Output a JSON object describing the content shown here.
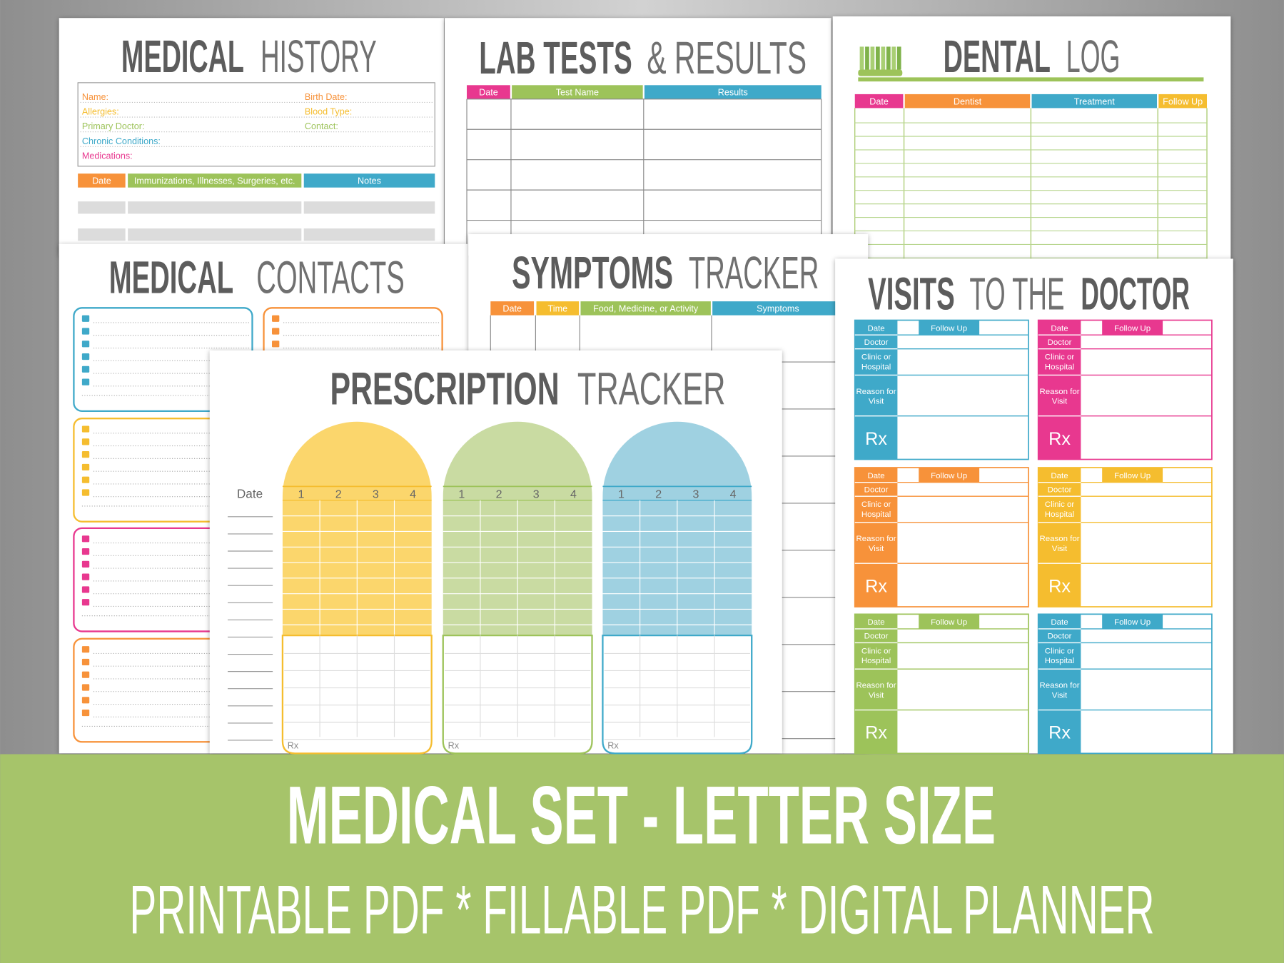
{
  "pages": {
    "medical_history": {
      "title_bold": "MEDICAL",
      "title_light": "HISTORY",
      "fields": [
        "Name:",
        "Birth Date:",
        "Allergies:",
        "Blood Type:",
        "Primary Doctor:",
        "Contact:",
        "Chronic Conditions:",
        "Medications:"
      ],
      "columns": [
        "Date",
        "Immunizations, Illnesses, Surgeries, etc.",
        "Notes"
      ]
    },
    "lab_tests": {
      "title_bold": "LAB TESTS",
      "title_light": "& RESULTS",
      "columns": [
        "Date",
        "Test Name",
        "Results"
      ]
    },
    "dental_log": {
      "title_bold": "DENTAL",
      "title_light": "LOG",
      "columns": [
        "Date",
        "Dentist",
        "Treatment",
        "Follow Up"
      ]
    },
    "medical_contacts": {
      "title_bold": "MEDICAL",
      "title_light": "CONTACTS"
    },
    "symptoms_tracker": {
      "title_bold": "SYMPTOMS",
      "title_light": "TRACKER",
      "columns": [
        "Date",
        "Time",
        "Food, Medicine, or Activity",
        "Symptoms"
      ]
    },
    "prescription_tracker": {
      "title_bold": "PRESCRIPTION",
      "title_light": "TRACKER",
      "date_label": "Date",
      "doses": [
        "1",
        "2",
        "3",
        "4"
      ],
      "rx": "Rx"
    },
    "visits": {
      "title_bold": "VISITS",
      "title_light": "TO THE",
      "title_end": "DOCTOR",
      "labels": {
        "date": "Date",
        "follow_up": "Follow Up",
        "doctor": "Doctor",
        "clinic": [
          "Clinic or",
          "Hospital"
        ],
        "reason": [
          "Reason for",
          "Visit"
        ],
        "rx": "Rx"
      }
    }
  },
  "banner": {
    "title": "MEDICAL SET - LETTER SIZE",
    "subtitle": "PRINTABLE PDF * FILLABLE PDF * DIGITAL PLANNER"
  }
}
